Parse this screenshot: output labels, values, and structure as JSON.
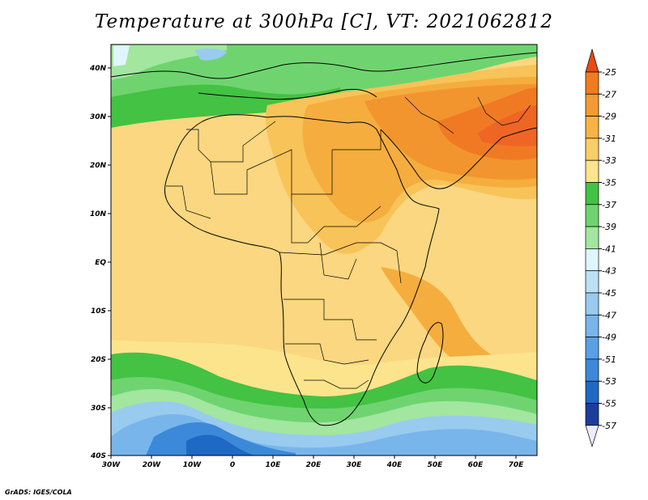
{
  "title": "Temperature at 300hPa [C], VT: 2021062812",
  "credit": "GrADS: IGES/COLA",
  "map": {
    "lon_ticks": [
      "30W",
      "20W",
      "10W",
      "0",
      "10E",
      "20E",
      "30E",
      "40E",
      "50E",
      "60E",
      "70E"
    ],
    "lat_ticks": [
      "40N",
      "30N",
      "20N",
      "10N",
      "EQ",
      "10S",
      "20S",
      "30S",
      "40S"
    ],
    "lon_range": [
      -30,
      75
    ],
    "lat_range": [
      -40,
      45
    ]
  },
  "colorbar": {
    "labels": [
      "-25",
      "-27",
      "-29",
      "-31",
      "-33",
      "-35",
      "-37",
      "-39",
      "-41",
      "-43",
      "-45",
      "-47",
      "-49",
      "-51",
      "-53",
      "-55",
      "-57"
    ],
    "colors": [
      "#f0602a",
      "#f07c1e",
      "#f39a33",
      "#f6b445",
      "#f8ce66",
      "#fce48c",
      "#43c243",
      "#6fd46f",
      "#a2e6a0",
      "#dff6ff",
      "#bde0f6",
      "#99cbef",
      "#78b5ea",
      "#5aa0e5",
      "#3c89d9",
      "#1f68c4",
      "#1a3e9a",
      "#10206e"
    ],
    "top_arrow_color": "#e84a12",
    "bottom_arrow_color": "#ececff"
  }
}
